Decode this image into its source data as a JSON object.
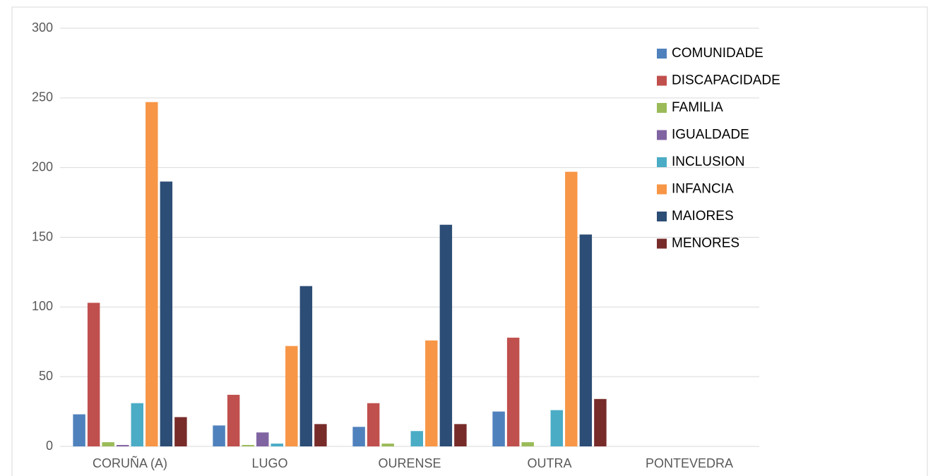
{
  "chart_data": {
    "type": "bar",
    "categories": [
      "CORUÑA (A)",
      "LUGO",
      "OURENSE",
      "OUTRA",
      "PONTEVEDRA"
    ],
    "series": [
      {
        "name": "COMUNIDADE",
        "color": "#4f81bd",
        "values": [
          23,
          15,
          14,
          25,
          0
        ]
      },
      {
        "name": "DISCAPACIDADE",
        "color": "#c0504d",
        "values": [
          103,
          37,
          31,
          78,
          0
        ]
      },
      {
        "name": "FAMILIA",
        "color": "#9bbb59",
        "values": [
          3,
          1,
          2,
          3,
          0
        ]
      },
      {
        "name": "IGUALDADE",
        "color": "#8064a2",
        "values": [
          1,
          10,
          0,
          0,
          0
        ]
      },
      {
        "name": "INCLUSION",
        "color": "#4bacc6",
        "values": [
          31,
          2,
          11,
          26,
          0
        ]
      },
      {
        "name": "INFANCIA",
        "color": "#f79646",
        "values": [
          247,
          72,
          76,
          197,
          0
        ]
      },
      {
        "name": "MAIORES",
        "color": "#2c4d75",
        "values": [
          190,
          115,
          159,
          152,
          0
        ]
      },
      {
        "name": "MENORES",
        "color": "#772c2a",
        "values": [
          21,
          16,
          16,
          34,
          0
        ]
      }
    ],
    "ylim": [
      0,
      300
    ],
    "yticks": [
      0,
      50,
      100,
      150,
      200,
      250,
      300
    ],
    "grid": true,
    "legend": "top-right"
  }
}
